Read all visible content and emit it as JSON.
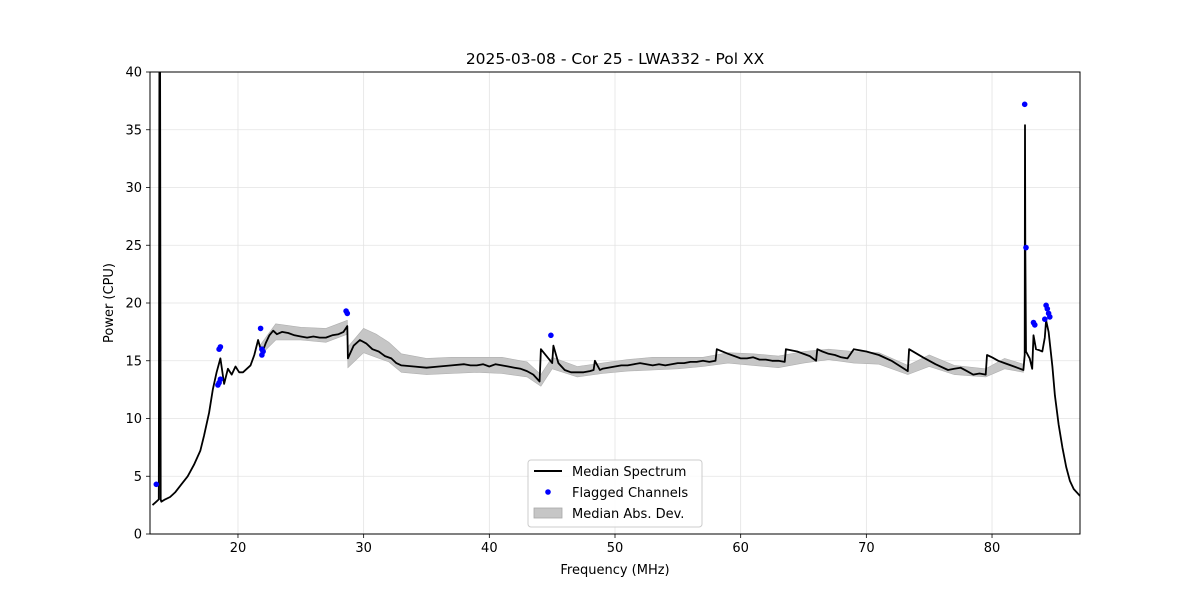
{
  "chart_data": {
    "type": "line",
    "title": "2025-03-08 - Cor 25 - LWA332 - Pol XX",
    "xlabel": "Frequency (MHz)",
    "ylabel": "Power (CPU)",
    "xlim": [
      13,
      87
    ],
    "ylim": [
      0,
      40
    ],
    "xticks": [
      20,
      30,
      40,
      50,
      60,
      70,
      80
    ],
    "yticks": [
      0,
      5,
      10,
      15,
      20,
      25,
      30,
      35,
      40
    ],
    "grid": true,
    "legend_position": "bottom-center",
    "series": [
      {
        "name": "Median Spectrum",
        "kind": "line",
        "color": "#000000",
        "x": [
          13.2,
          13.5,
          13.7,
          13.75,
          13.8,
          13.85,
          13.9,
          14.2,
          14.6,
          15.0,
          15.5,
          16.0,
          16.5,
          17.0,
          17.3,
          17.7,
          18.0,
          18.3,
          18.6,
          18.9,
          19.2,
          19.5,
          19.8,
          20.1,
          20.4,
          20.7,
          21.0,
          21.3,
          21.6,
          21.9,
          22.2,
          22.5,
          22.8,
          23.1,
          23.5,
          24.0,
          24.5,
          25.0,
          25.5,
          26.0,
          26.5,
          27.0,
          27.5,
          28.0,
          28.4,
          28.7,
          28.75,
          29.2,
          29.7,
          30.2,
          30.7,
          31.2,
          31.7,
          32.2,
          32.6,
          33.0,
          34.0,
          35.0,
          36.0,
          37.0,
          38.0,
          38.5,
          39.0,
          39.5,
          40.0,
          40.5,
          41.0,
          41.5,
          42.0,
          42.5,
          43.0,
          43.5,
          44.0,
          44.1,
          45.0,
          45.1,
          45.5,
          46.0,
          46.5,
          47.0,
          47.5,
          48.0,
          48.3,
          48.4,
          48.8,
          49.0,
          50.0,
          50.5,
          51.0,
          51.5,
          52.0,
          52.5,
          53.0,
          53.5,
          54.0,
          54.5,
          55.0,
          55.5,
          56.0,
          56.5,
          57.0,
          57.5,
          58.0,
          58.1,
          59.0,
          60.0,
          60.5,
          61.0,
          61.5,
          62.0,
          62.5,
          63.0,
          63.5,
          63.6,
          64.5,
          65.5,
          66.0,
          66.1,
          66.5,
          67.0,
          67.5,
          68.0,
          68.5,
          69.0,
          70.0,
          71.0,
          72.0,
          73.3,
          73.4,
          74.5,
          75.5,
          76.5,
          77.0,
          77.5,
          78.0,
          78.5,
          79.0,
          79.5,
          79.6,
          80.0,
          80.5,
          81.0,
          81.5,
          82.0,
          82.5,
          82.6,
          82.62,
          82.65,
          82.7,
          83.0,
          83.2,
          83.3,
          83.5,
          83.8,
          84.0,
          84.2,
          84.3,
          84.5,
          84.8,
          85.0,
          85.3,
          85.6,
          85.9,
          86.2,
          86.5,
          87.0
        ],
        "y": [
          2.5,
          2.8,
          3.0,
          40,
          40,
          3.0,
          2.8,
          3.0,
          3.2,
          3.6,
          4.3,
          5.0,
          6.0,
          7.2,
          8.5,
          10.5,
          12.5,
          14.0,
          15.2,
          13.0,
          14.3,
          13.8,
          14.5,
          14.0,
          14.0,
          14.3,
          14.6,
          15.5,
          16.8,
          15.6,
          16.5,
          17.2,
          17.6,
          17.3,
          17.5,
          17.4,
          17.2,
          17.1,
          17.0,
          17.1,
          17.0,
          17.0,
          17.2,
          17.3,
          17.5,
          18.0,
          15.2,
          16.3,
          16.8,
          16.5,
          16.0,
          15.8,
          15.4,
          15.2,
          14.8,
          14.6,
          14.5,
          14.4,
          14.5,
          14.6,
          14.7,
          14.6,
          14.6,
          14.7,
          14.5,
          14.7,
          14.6,
          14.5,
          14.4,
          14.3,
          14.1,
          13.8,
          13.2,
          16.0,
          14.8,
          16.3,
          14.8,
          14.2,
          14.0,
          14.0,
          14.0,
          14.1,
          14.2,
          15.0,
          14.2,
          14.3,
          14.5,
          14.6,
          14.6,
          14.7,
          14.8,
          14.7,
          14.6,
          14.7,
          14.6,
          14.7,
          14.8,
          14.8,
          14.9,
          14.9,
          15.0,
          14.9,
          15.0,
          16.0,
          15.6,
          15.2,
          15.2,
          15.3,
          15.1,
          15.1,
          15.0,
          15.0,
          14.9,
          16.0,
          15.8,
          15.4,
          15.0,
          16.0,
          15.8,
          15.6,
          15.5,
          15.3,
          15.2,
          16.0,
          15.8,
          15.5,
          15.0,
          14.1,
          16.0,
          15.3,
          14.7,
          14.2,
          14.3,
          14.4,
          14.1,
          13.8,
          13.9,
          13.8,
          15.5,
          15.3,
          15.0,
          14.8,
          14.6,
          14.4,
          14.2,
          15.5,
          35.4,
          25.0,
          15.8,
          15.2,
          14.3,
          17.2,
          16.0,
          15.9,
          15.8,
          17.0,
          18.5,
          17.5,
          14.5,
          12.0,
          9.5,
          7.5,
          5.8,
          4.6,
          3.9,
          3.3
        ]
      },
      {
        "name": "Flagged Channels",
        "kind": "scatter",
        "color": "#0000ff",
        "x": [
          13.5,
          18.4,
          18.5,
          18.6,
          18.5,
          18.6,
          21.8,
          21.9,
          22.0,
          21.9,
          28.6,
          28.7,
          44.9,
          82.6,
          82.7,
          83.3,
          83.4,
          84.2,
          84.3,
          84.4,
          84.5,
          84.6
        ],
        "y": [
          4.3,
          12.9,
          13.1,
          13.4,
          16.0,
          16.2,
          17.8,
          15.5,
          15.8,
          16.0,
          19.3,
          19.1,
          17.2,
          37.2,
          24.8,
          18.3,
          18.1,
          18.6,
          19.8,
          19.5,
          19.1,
          18.8
        ]
      },
      {
        "name": "Median Abs. Dev.",
        "kind": "band",
        "color": "#c6c6c6",
        "x": [
          21.8,
          23.0,
          25.0,
          27.0,
          28.7,
          28.75,
          30.0,
          31.0,
          32.0,
          33.0,
          35.0,
          37.0,
          39.0,
          41.0,
          43.0,
          44.1,
          45.0,
          47.0,
          49.0,
          51.0,
          53.0,
          55.0,
          57.0,
          59.0,
          61.0,
          63.0,
          65.0,
          67.0,
          69.0,
          71.0,
          73.3,
          75.0,
          77.0,
          79.5,
          81.0,
          82.5
        ],
        "lower": [
          15.5,
          16.8,
          16.8,
          16.6,
          17.3,
          14.4,
          15.7,
          15.3,
          14.9,
          14.0,
          13.8,
          13.9,
          14.0,
          13.9,
          13.6,
          12.8,
          14.3,
          13.6,
          13.9,
          14.1,
          14.2,
          14.3,
          14.5,
          14.8,
          14.6,
          14.4,
          14.8,
          15.1,
          14.8,
          14.7,
          13.8,
          14.5,
          13.8,
          13.6,
          14.3,
          14.0
        ],
        "upper": [
          16.4,
          18.2,
          17.9,
          17.8,
          18.5,
          16.2,
          17.8,
          17.3,
          16.6,
          15.6,
          15.2,
          15.3,
          15.3,
          15.3,
          14.9,
          13.8,
          15.3,
          14.5,
          14.8,
          15.1,
          15.3,
          15.3,
          15.3,
          15.7,
          15.6,
          15.4,
          15.8,
          16.0,
          15.8,
          15.7,
          14.6,
          15.5,
          14.6,
          14.3,
          15.2,
          14.7
        ]
      }
    ]
  }
}
